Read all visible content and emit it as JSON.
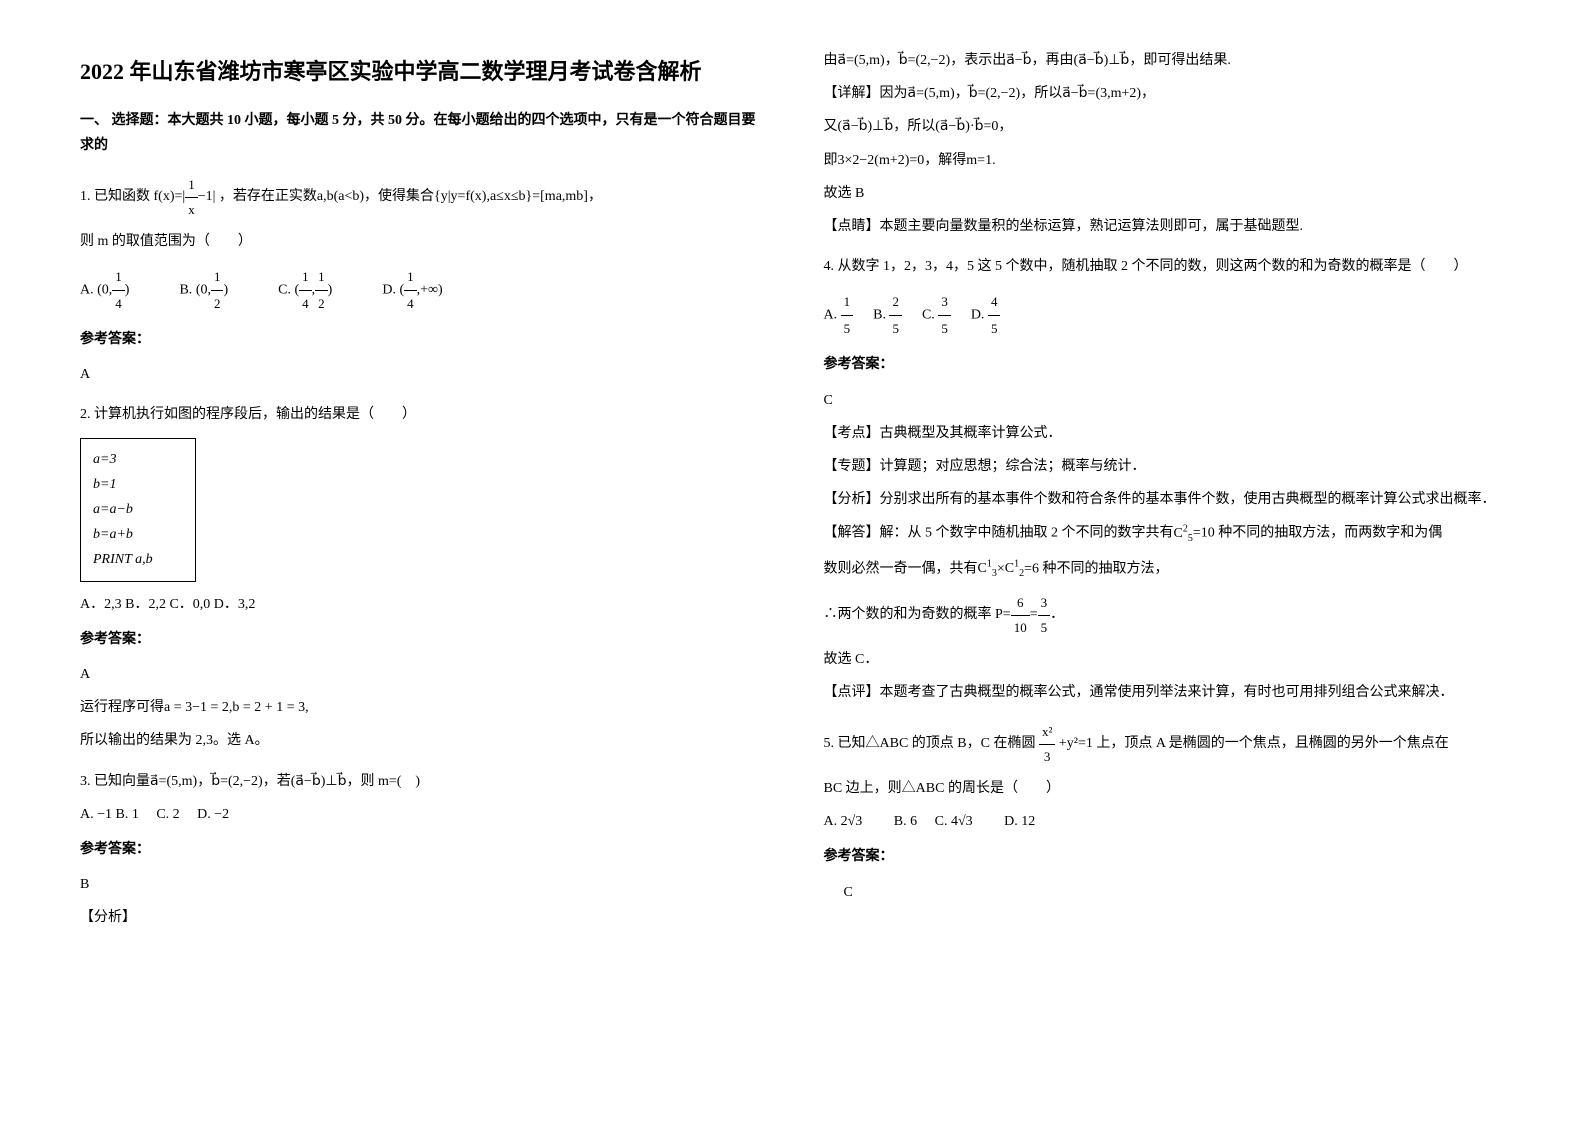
{
  "title": "2022 年山东省潍坊市寒亭区实验中学高二数学理月考试卷含解析",
  "section1_header": "一、 选择题：本大题共 10 小题，每小题 5 分，共 50 分。在每小题给出的四个选项中，只有是一个符合题目要求的",
  "q1": {
    "stem_a": "1. 已知函数",
    "formula": "f(x)=|",
    "frac_num": "1",
    "frac_den": "x",
    "formula_end": "−1|",
    "stem_b": "，若存在正实数a,b(a<b)，使得集合{y|y=f(x),a≤x≤b}=[ma,mb]，",
    "stem_c": "则 m 的取值范围为（　　）",
    "optA_prefix": "A.",
    "optA": "(0,",
    "optA_num": "1",
    "optA_den": "4",
    "optA_end": ")",
    "optB_prefix": "B.",
    "optB": "(0,",
    "optB_num": "1",
    "optB_den": "2",
    "optB_end": ")",
    "optC_prefix": "C.",
    "optC": "(",
    "optC_num1": "1",
    "optC_den1": "4",
    "optC_mid": ",",
    "optC_num2": "1",
    "optC_den2": "2",
    "optC_end": ")",
    "optD_prefix": "D.",
    "optD": "(",
    "optD_num": "1",
    "optD_den": "4",
    "optD_end": ",+∞)",
    "answer_label": "参考答案：",
    "answer": "A"
  },
  "q2": {
    "stem": "2. 计算机执行如图的程序段后，输出的结果是（　　）",
    "prog_l1": "a=3",
    "prog_l2": "b=1",
    "prog_l3": "a=a−b",
    "prog_l4": "b=a+b",
    "prog_l5": "PRINT a,b",
    "options": "A．2,3 B．2,2 C．0,0 D．3,2",
    "answer_label": "参考答案：",
    "answer": "A",
    "exp1": "运行程序可得a = 3−1 = 2,b = 2 + 1 = 3,",
    "exp2": "所以输出的结果为 2,3。选 A。"
  },
  "q3": {
    "stem": "3. 已知向量a⃗=(5,m)，b⃗=(2,−2)，若(a⃗−b⃗)⊥b⃗，则 m=(　)",
    "options": "A. −1  B. 1　  C. 2　  D. −2",
    "answer_label": "参考答案：",
    "answer": "B",
    "exp_label": "【分析】"
  },
  "right": {
    "l1": "由a⃗=(5,m)，b⃗=(2,−2)，表示出a⃗−b⃗，再由(a⃗−b⃗)⊥b⃗，即可得出结果.",
    "l2": "【详解】因为a⃗=(5,m)，b⃗=(2,−2)，所以a⃗−b⃗=(3,m+2)，",
    "l3": "又(a⃗−b⃗)⊥b⃗，所以(a⃗−b⃗)·b⃗=0，",
    "l4": "即3×2−2(m+2)=0，解得m=1.",
    "l5": "故选 B",
    "l6": "【点睛】本题主要向量数量积的坐标运算，熟记运算法则即可，属于基础题型."
  },
  "q4": {
    "stem": "4. 从数字 1，2，3，4，5 这 5 个数中，随机抽取 2 个不同的数，则这两个数的和为奇数的概率是（　　）",
    "optA_prefix": "A.",
    "optA_num": "1",
    "optA_den": "5",
    "optB_prefix": "B.",
    "optB_num": "2",
    "optB_den": "5",
    "optC_prefix": "C.",
    "optC_num": "3",
    "optC_den": "5",
    "optD_prefix": "D.",
    "optD_num": "4",
    "optD_den": "5",
    "answer_label": "参考答案：",
    "answer": "C",
    "exp1": "【考点】古典概型及其概率计算公式．",
    "exp2": "【专题】计算题；对应思想；综合法；概率与统计．",
    "exp3": "【分析】分别求出所有的基本事件个数和符合条件的基本事件个数，使用古典概型的概率计算公式求出概率．",
    "exp4a": "【解答】解：从 5 个数字中随机抽取 2 个不同的数字共有",
    "exp4b": "=10 种不同的抽取方法，而两数字和为偶",
    "exp5a": "数则必然一奇一偶，共有",
    "exp5b": "=6 种不同的抽取方法，",
    "exp6a": "∴两个数的和为奇数的概率 P=",
    "exp6_num1": "6",
    "exp6_den1": "10",
    "exp6_eq": "=",
    "exp6_num2": "3",
    "exp6_den2": "5",
    "exp6_end": "．",
    "exp7": "故选 C．",
    "exp8": "【点评】本题考查了古典概型的概率公式，通常使用列举法来计算，有时也可用排列组合公式来解决．"
  },
  "q5": {
    "stem_a": "5. 已知△ABC 的顶点 B，C 在椭圆",
    "frac_num": "x²",
    "frac_den": "3",
    "stem_b": "+y²=1 上，顶点 A 是椭圆的一个焦点，且椭圆的另外一个焦点在",
    "stem_c": "BC 边上，则△ABC 的周长是（　　）",
    "optA": "A. 2√3",
    "optB": "B. 6",
    "optC": "C. 4√3",
    "optD": "D. 12",
    "answer_label": "参考答案：",
    "answer": "C"
  },
  "comb_C52": "C",
  "comb_C52_up": "2",
  "comb_C52_dn": "5",
  "comb_C31": "C",
  "comb_C31_up": "1",
  "comb_C31_dn": "3",
  "comb_mult": "×",
  "comb_C21": "C",
  "comb_C21_up": "1",
  "comb_C21_dn": "2"
}
